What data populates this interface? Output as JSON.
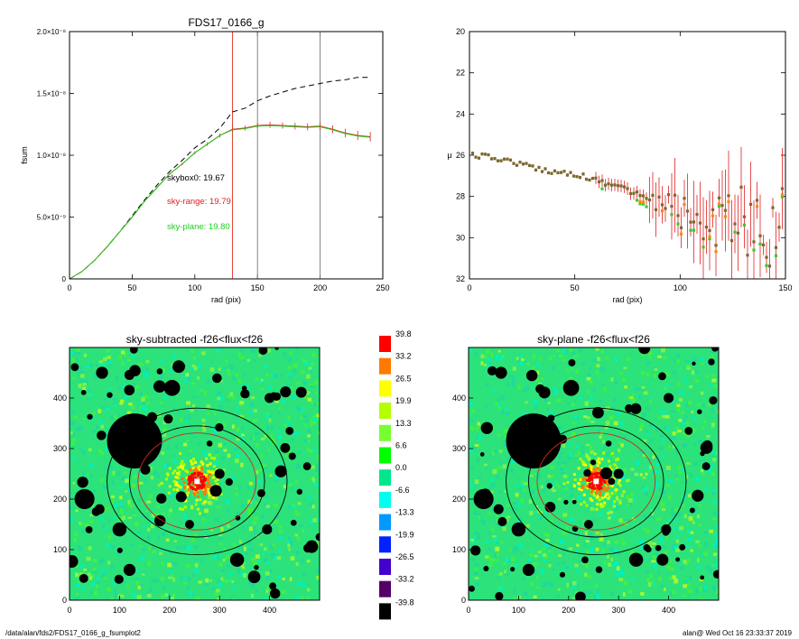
{
  "footer": {
    "left": "/data/alan/fds2/FDS17_0166_g_fsumplot2",
    "right": "alan@  Wed Oct 16 23:33:37 2019"
  },
  "chart_data": [
    {
      "id": "fsum",
      "type": "line",
      "title": "FDS17_0166_g",
      "xlabel": "rad (pix)",
      "ylabel": "fsum",
      "xlim": [
        0,
        250
      ],
      "ylim": [
        0,
        2e-08
      ],
      "x_ticks": [
        0,
        50,
        100,
        150,
        200,
        250
      ],
      "y_ticks": [
        {
          "v": 0,
          "label": "0"
        },
        {
          "v": 5e-09,
          "label": "5.0×10⁻⁹"
        },
        {
          "v": 1e-08,
          "label": "1.0×10⁻⁸"
        },
        {
          "v": 1.5e-08,
          "label": "1.5×10⁻⁸"
        },
        {
          "v": 2e-08,
          "label": "2.0×10⁻⁸"
        }
      ],
      "vlines": [
        {
          "x": 130,
          "color": "#e03020"
        },
        {
          "x": 150,
          "color": "#777777"
        },
        {
          "x": 200,
          "color": "#777777"
        }
      ],
      "annotations": [
        {
          "text": "skybox0: 19.67",
          "color": "#000000"
        },
        {
          "text": "sky-range: 19.79",
          "color": "#e02020"
        },
        {
          "text": "sky-plane: 19.80",
          "color": "#22cc22"
        }
      ],
      "series": [
        {
          "color": "#000000",
          "style": "dashed",
          "x": [
            0,
            10,
            20,
            30,
            40,
            50,
            60,
            70,
            80,
            90,
            100,
            110,
            120,
            130,
            140,
            150,
            160,
            170,
            180,
            190,
            200,
            210,
            220,
            230,
            240
          ],
          "y": [
            0,
            6e-10,
            1.5e-09,
            2.6e-09,
            3.8e-09,
            5.1e-09,
            6.4e-09,
            7.6e-09,
            8.7e-09,
            9.6e-09,
            1.06e-08,
            1.13e-08,
            1.22e-08,
            1.35e-08,
            1.38e-08,
            1.44e-08,
            1.48e-08,
            1.51e-08,
            1.54e-08,
            1.56e-08,
            1.58e-08,
            1.6e-08,
            1.61e-08,
            1.63e-08,
            1.63e-08
          ]
        },
        {
          "color": "#e02020",
          "style": "solid",
          "errorbars": true,
          "x": [
            0,
            10,
            20,
            30,
            40,
            50,
            60,
            70,
            80,
            90,
            100,
            110,
            120,
            130,
            140,
            150,
            160,
            170,
            180,
            190,
            200,
            210,
            220,
            230,
            240
          ],
          "y": [
            0,
            6e-10,
            1.5e-09,
            2.6e-09,
            3.8e-09,
            5e-09,
            6.3e-09,
            7.4e-09,
            8.5e-09,
            9.3e-09,
            1.02e-08,
            1.09e-08,
            1.16e-08,
            1.21e-08,
            1.22e-08,
            1.24e-08,
            1.245e-08,
            1.24e-08,
            1.235e-08,
            1.23e-08,
            1.235e-08,
            1.21e-08,
            1.18e-08,
            1.16e-08,
            1.15e-08
          ],
          "err": [
            0,
            0,
            0,
            0,
            0,
            0,
            5e-11,
            7e-11,
            9e-11,
            1e-10,
            1.2e-10,
            1.4e-10,
            1.6e-10,
            1.8e-10,
            2e-10,
            2.2e-10,
            2.4e-10,
            2.5e-10,
            2.7e-10,
            2.9e-10,
            3.1e-10,
            3.3e-10,
            3.5e-10,
            3.7e-10,
            3.9e-10
          ]
        },
        {
          "color": "#22cc22",
          "style": "solid",
          "x": [
            0,
            10,
            20,
            30,
            40,
            50,
            60,
            70,
            80,
            90,
            100,
            110,
            120,
            130,
            140,
            150,
            160,
            170,
            180,
            190,
            200,
            210,
            220,
            230,
            240
          ],
          "y": [
            0,
            6e-10,
            1.5e-09,
            2.6e-09,
            3.8e-09,
            5e-09,
            6.3e-09,
            7.4e-09,
            8.5e-09,
            9.3e-09,
            1.02e-08,
            1.09e-08,
            1.16e-08,
            1.205e-08,
            1.215e-08,
            1.235e-08,
            1.24e-08,
            1.235e-08,
            1.23e-08,
            1.225e-08,
            1.23e-08,
            1.205e-08,
            1.175e-08,
            1.155e-08,
            1.145e-08
          ]
        }
      ]
    },
    {
      "id": "mu",
      "type": "scatter",
      "title": "",
      "xlabel": "rad (pix)",
      "ylabel": "μ",
      "xlim": [
        0,
        150
      ],
      "ylim": [
        32,
        20
      ],
      "x_ticks": [
        0,
        50,
        100,
        150
      ],
      "y_ticks": [
        20,
        22,
        24,
        26,
        28,
        30,
        32
      ],
      "profile": [
        [
          2,
          26.0
        ],
        [
          10,
          26.1
        ],
        [
          20,
          26.3
        ],
        [
          30,
          26.6
        ],
        [
          40,
          26.8
        ],
        [
          50,
          26.9
        ],
        [
          60,
          27.2
        ],
        [
          70,
          27.5
        ],
        [
          80,
          27.9
        ],
        [
          90,
          28.3
        ],
        [
          100,
          28.7
        ],
        [
          110,
          29.0
        ],
        [
          120,
          29.2
        ],
        [
          130,
          29.3
        ],
        [
          140,
          29.5
        ],
        [
          150,
          29.7
        ]
      ]
    },
    {
      "id": "map1",
      "type": "heatmap",
      "title": "sky-subtracted -f26<flux<f26",
      "xlim": [
        0,
        500
      ],
      "ylim": [
        0,
        500
      ],
      "x_ticks": [
        0,
        100,
        200,
        300,
        400
      ],
      "y_ticks": [
        0,
        100,
        200,
        300,
        400
      ],
      "center": [
        255,
        235
      ],
      "ellipses": [
        {
          "rx": 180,
          "ry": 145,
          "color": "#000000"
        },
        {
          "rx": 135,
          "ry": 110,
          "color": "#000000"
        },
        {
          "rx": 118,
          "ry": 96,
          "color": "#cc2a1a"
        }
      ],
      "masks": [
        {
          "x": 130,
          "y": 315,
          "r": 55
        },
        {
          "x": 300,
          "y": 250,
          "r": 10
        },
        {
          "x": 65,
          "y": 450,
          "r": 12
        },
        {
          "x": 205,
          "y": 420,
          "r": 16
        },
        {
          "x": 335,
          "y": 80,
          "r": 14
        },
        {
          "x": 395,
          "y": 140,
          "r": 10
        },
        {
          "x": 440,
          "y": 335,
          "r": 8
        },
        {
          "x": 165,
          "y": 360,
          "r": 7
        },
        {
          "x": 240,
          "y": 150,
          "r": 9
        },
        {
          "x": 60,
          "y": 180,
          "r": 10
        },
        {
          "x": 120,
          "y": 60,
          "r": 12
        },
        {
          "x": 280,
          "y": 310,
          "r": 6
        },
        {
          "x": 400,
          "y": 400,
          "r": 10
        },
        {
          "x": 100,
          "y": 140,
          "r": 14
        },
        {
          "x": 30,
          "y": 200,
          "r": 20
        },
        {
          "x": 475,
          "y": 265,
          "r": 8
        }
      ]
    },
    {
      "id": "colorbar",
      "type": "table",
      "levels": [
        {
          "label": "39.8",
          "color": "#ff0000"
        },
        {
          "label": "33.2",
          "color": "#ff7a00"
        },
        {
          "label": "26.5",
          "color": "#ffff00"
        },
        {
          "label": "19.9",
          "color": "#b4ff00"
        },
        {
          "label": "13.3",
          "color": "#77ff33"
        },
        {
          "label": "6.6",
          "color": "#00ff00"
        },
        {
          "label": "0.0",
          "color": "#00e68c"
        },
        {
          "label": "-6.6",
          "color": "#00ffee"
        },
        {
          "label": "-13.3",
          "color": "#0099ff"
        },
        {
          "label": "-19.9",
          "color": "#0022ff"
        },
        {
          "label": "-26.5",
          "color": "#4400cc"
        },
        {
          "label": "-33.2",
          "color": "#550066"
        },
        {
          "label": "-39.8",
          "color": "#000000"
        }
      ]
    },
    {
      "id": "map2",
      "type": "heatmap",
      "title": "sky-plane -f26<flux<f26",
      "xlim": [
        0,
        500
      ],
      "ylim": [
        0,
        500
      ],
      "x_ticks": [
        0,
        100,
        200,
        300,
        400
      ],
      "y_ticks": [
        0,
        100,
        200,
        300,
        400
      ]
    }
  ]
}
